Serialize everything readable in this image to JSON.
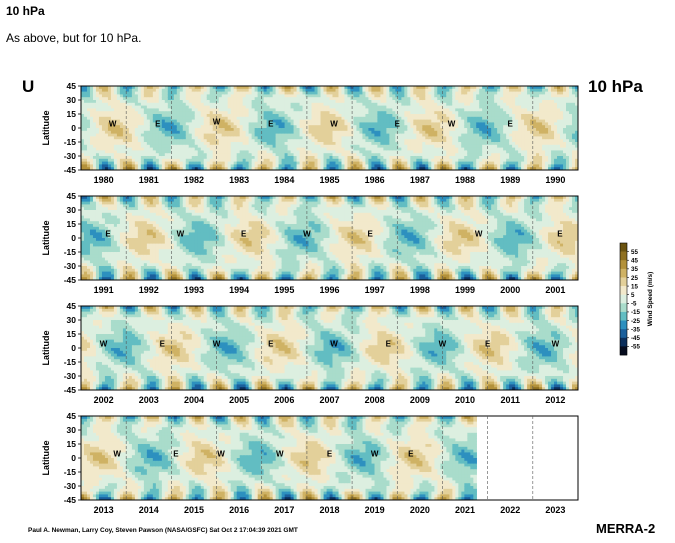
{
  "header": {
    "title": "10 hPa",
    "description": "As above, but for 10 hPa."
  },
  "chart_data": {
    "type": "heatmap",
    "variable_label": "U",
    "level_label": "10 hPa",
    "source_label": "MERRA-2",
    "credit": "Paul A. Newman, Larry Coy, Steven Pawson (NASA/GSFC) Sat Oct  2 17:04:39 2021 GMT",
    "ylabel": "Latitude",
    "yticks": [
      45,
      30,
      15,
      0,
      -15,
      -30,
      -45
    ],
    "ylim": [
      -45,
      45
    ],
    "colorbar": {
      "label": "Wind Speed (m/s)",
      "levels": [
        55,
        45,
        35,
        25,
        15,
        5,
        -5,
        -15,
        -25,
        -35,
        -45,
        -55
      ],
      "colors": [
        "#6b5310",
        "#8f7020",
        "#b3913a",
        "#cfb264",
        "#e3d09a",
        "#f2e9cb",
        "#dcefe0",
        "#a9dccb",
        "#62bdc2",
        "#2d90bf",
        "#1a5f9c",
        "#0c2f5c",
        "#070d1f"
      ]
    },
    "panels": [
      {
        "years": [
          "1980",
          "1981",
          "1982",
          "1983",
          "1984",
          "1985",
          "1986",
          "1987",
          "1988",
          "1989",
          "1990"
        ],
        "start_year": 1980,
        "end_year": 1991,
        "phase_labels": [
          {
            "text": "W",
            "year": 1980.7,
            "lat": 5
          },
          {
            "text": "E",
            "year": 1981.7,
            "lat": 5
          },
          {
            "text": "W",
            "year": 1983.0,
            "lat": 7
          },
          {
            "text": "E",
            "year": 1984.2,
            "lat": 5
          },
          {
            "text": "W",
            "year": 1985.6,
            "lat": 5
          },
          {
            "text": "E",
            "year": 1987.0,
            "lat": 5
          },
          {
            "text": "W",
            "year": 1988.2,
            "lat": 5
          },
          {
            "text": "E",
            "year": 1989.5,
            "lat": 5
          }
        ]
      },
      {
        "years": [
          "1991",
          "1992",
          "1993",
          "1994",
          "1995",
          "1996",
          "1997",
          "1998",
          "1999",
          "2000",
          "2001"
        ],
        "start_year": 1991,
        "end_year": 2002,
        "phase_labels": [
          {
            "text": "E",
            "year": 1991.6,
            "lat": 5
          },
          {
            "text": "W",
            "year": 1993.2,
            "lat": 5
          },
          {
            "text": "E",
            "year": 1994.6,
            "lat": 5
          },
          {
            "text": "W",
            "year": 1996.0,
            "lat": 5
          },
          {
            "text": "E",
            "year": 1997.4,
            "lat": 5
          },
          {
            "text": "W",
            "year": 1999.8,
            "lat": 5
          },
          {
            "text": "E",
            "year": 2001.6,
            "lat": 5
          }
        ]
      },
      {
        "years": [
          "2002",
          "2003",
          "2004",
          "2005",
          "2006",
          "2007",
          "2008",
          "2009",
          "2010",
          "2011",
          "2012"
        ],
        "start_year": 2002,
        "end_year": 2013,
        "phase_labels": [
          {
            "text": "W",
            "year": 2002.5,
            "lat": 5
          },
          {
            "text": "E",
            "year": 2003.8,
            "lat": 5
          },
          {
            "text": "W",
            "year": 2005.0,
            "lat": 5
          },
          {
            "text": "E",
            "year": 2006.2,
            "lat": 5
          },
          {
            "text": "W",
            "year": 2007.6,
            "lat": 5
          },
          {
            "text": "E",
            "year": 2008.8,
            "lat": 5
          },
          {
            "text": "W",
            "year": 2010.0,
            "lat": 5
          },
          {
            "text": "E",
            "year": 2011.0,
            "lat": 5
          },
          {
            "text": "W",
            "year": 2012.5,
            "lat": 5
          }
        ]
      },
      {
        "years": [
          "2013",
          "2014",
          "2015",
          "2016",
          "2017",
          "2018",
          "2019",
          "2020",
          "2021",
          "2022",
          "2023"
        ],
        "start_year": 2013,
        "end_year": 2024,
        "data_end_year": 2021.75,
        "phase_labels": [
          {
            "text": "W",
            "year": 2013.8,
            "lat": 5
          },
          {
            "text": "E",
            "year": 2015.1,
            "lat": 5
          },
          {
            "text": "W",
            "year": 2016.1,
            "lat": 5
          },
          {
            "text": "W",
            "year": 2017.4,
            "lat": 5
          },
          {
            "text": "E",
            "year": 2018.5,
            "lat": 5
          },
          {
            "text": "W",
            "year": 2019.5,
            "lat": 5
          },
          {
            "text": "E",
            "year": 2020.3,
            "lat": 5
          }
        ]
      }
    ]
  }
}
